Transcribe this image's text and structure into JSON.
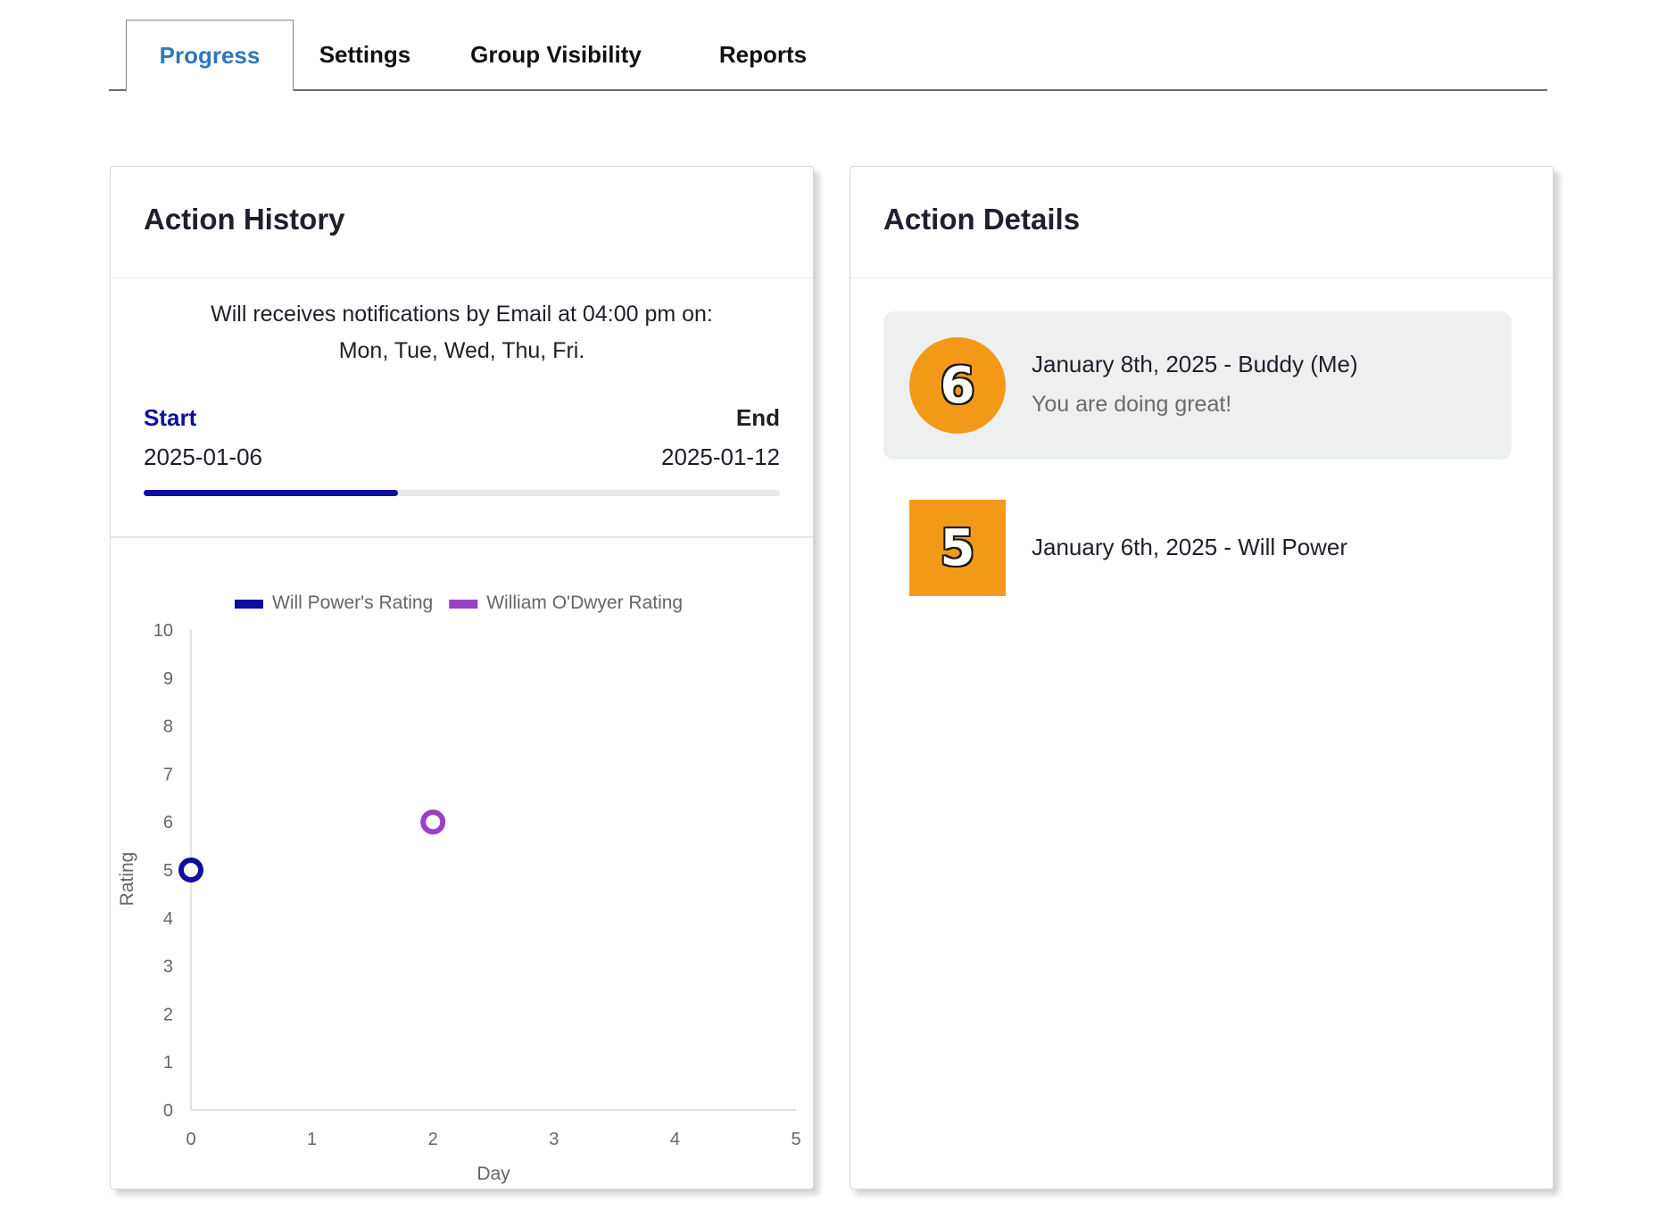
{
  "tabs": [
    {
      "label": "Progress",
      "active": true
    },
    {
      "label": "Settings",
      "active": false
    },
    {
      "label": "Group Visibility",
      "active": false
    },
    {
      "label": "Reports",
      "active": false
    }
  ],
  "history": {
    "title": "Action History",
    "notification_line1": "Will receives notifications by Email at 04:00 pm on:",
    "notification_line2": "Mon, Tue, Wed, Thu, Fri.",
    "start_label": "Start",
    "end_label": "End",
    "start_date": "2025-01-06",
    "end_date": "2025-01-12",
    "progress_fraction": 0.4
  },
  "chart_data": {
    "type": "scatter",
    "xlabel": "Day",
    "ylabel": "Rating",
    "xlim": [
      0,
      5
    ],
    "ylim": [
      0,
      10
    ],
    "x_ticks": [
      0,
      1,
      2,
      3,
      4,
      5
    ],
    "y_ticks": [
      0,
      1,
      2,
      3,
      4,
      5,
      6,
      7,
      8,
      9,
      10
    ],
    "legend_position": "top",
    "series": [
      {
        "name": "Will Power's Rating",
        "color": "#0e0e9e",
        "points": [
          {
            "x": 0,
            "y": 5
          }
        ]
      },
      {
        "name": "William O'Dwyer Rating",
        "color": "#9a40c6",
        "points": [
          {
            "x": 2,
            "y": 6
          }
        ]
      }
    ]
  },
  "details": {
    "title": "Action Details",
    "items": [
      {
        "score": "6",
        "shape": "circle",
        "title": "January 8th, 2025 - Buddy (Me)",
        "message": "You are doing great!",
        "highlight": true
      },
      {
        "score": "5",
        "shape": "square",
        "title": "January 6th, 2025 - Will Power",
        "message": "",
        "highlight": false
      }
    ]
  },
  "colors": {
    "accent": "#2f78b7",
    "start_label": "#10109a",
    "badge": "#f29a17",
    "progress": "#0f0fa0"
  }
}
